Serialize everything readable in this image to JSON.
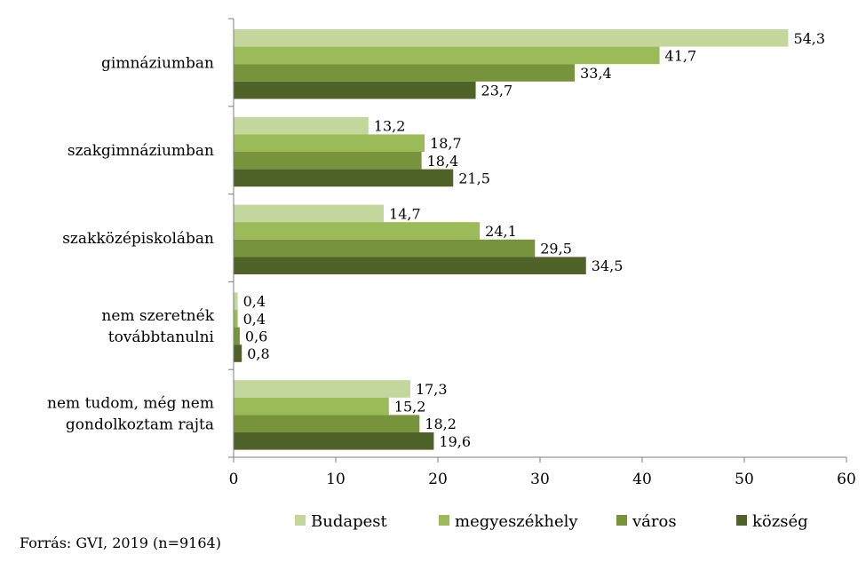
{
  "chart_data": {
    "type": "bar",
    "orientation": "horizontal",
    "categories": [
      [
        "gimnáziumban"
      ],
      [
        "szakgimnáziumban"
      ],
      [
        "szakközépiskolában"
      ],
      [
        "nem szeretnék",
        "továbbtanulni"
      ],
      [
        "nem tudom, még nem",
        "gondolkoztam rajta"
      ]
    ],
    "series": [
      {
        "name": "Budapest",
        "color": "#c3d69b",
        "values": [
          54.3,
          13.2,
          14.7,
          0.4,
          17.3
        ],
        "labels": [
          "54,3",
          "13,2",
          "14,7",
          "0,4",
          "17,3"
        ]
      },
      {
        "name": "megyeszékhely",
        "color": "#9bbb59",
        "values": [
          41.7,
          18.7,
          24.1,
          0.4,
          15.2
        ],
        "labels": [
          "41,7",
          "18,7",
          "24,1",
          "0,4",
          "15,2"
        ]
      },
      {
        "name": "város",
        "color": "#77933c",
        "values": [
          33.4,
          18.4,
          29.5,
          0.6,
          18.2
        ],
        "labels": [
          "33,4",
          "18,4",
          "29,5",
          "0,6",
          "18,2"
        ]
      },
      {
        "name": "község",
        "color": "#4f6228",
        "values": [
          23.7,
          21.5,
          34.5,
          0.8,
          19.6
        ],
        "labels": [
          "23,7",
          "21,5",
          "34,5",
          "0,8",
          "19,6"
        ]
      }
    ],
    "xlim": [
      0,
      60
    ],
    "xticks": [
      "0",
      "10",
      "20",
      "30",
      "40",
      "50",
      "60"
    ],
    "legend_position": "bottom",
    "grid": false
  },
  "source_text": "Forrás: GVI, 2019 (n=9164)"
}
